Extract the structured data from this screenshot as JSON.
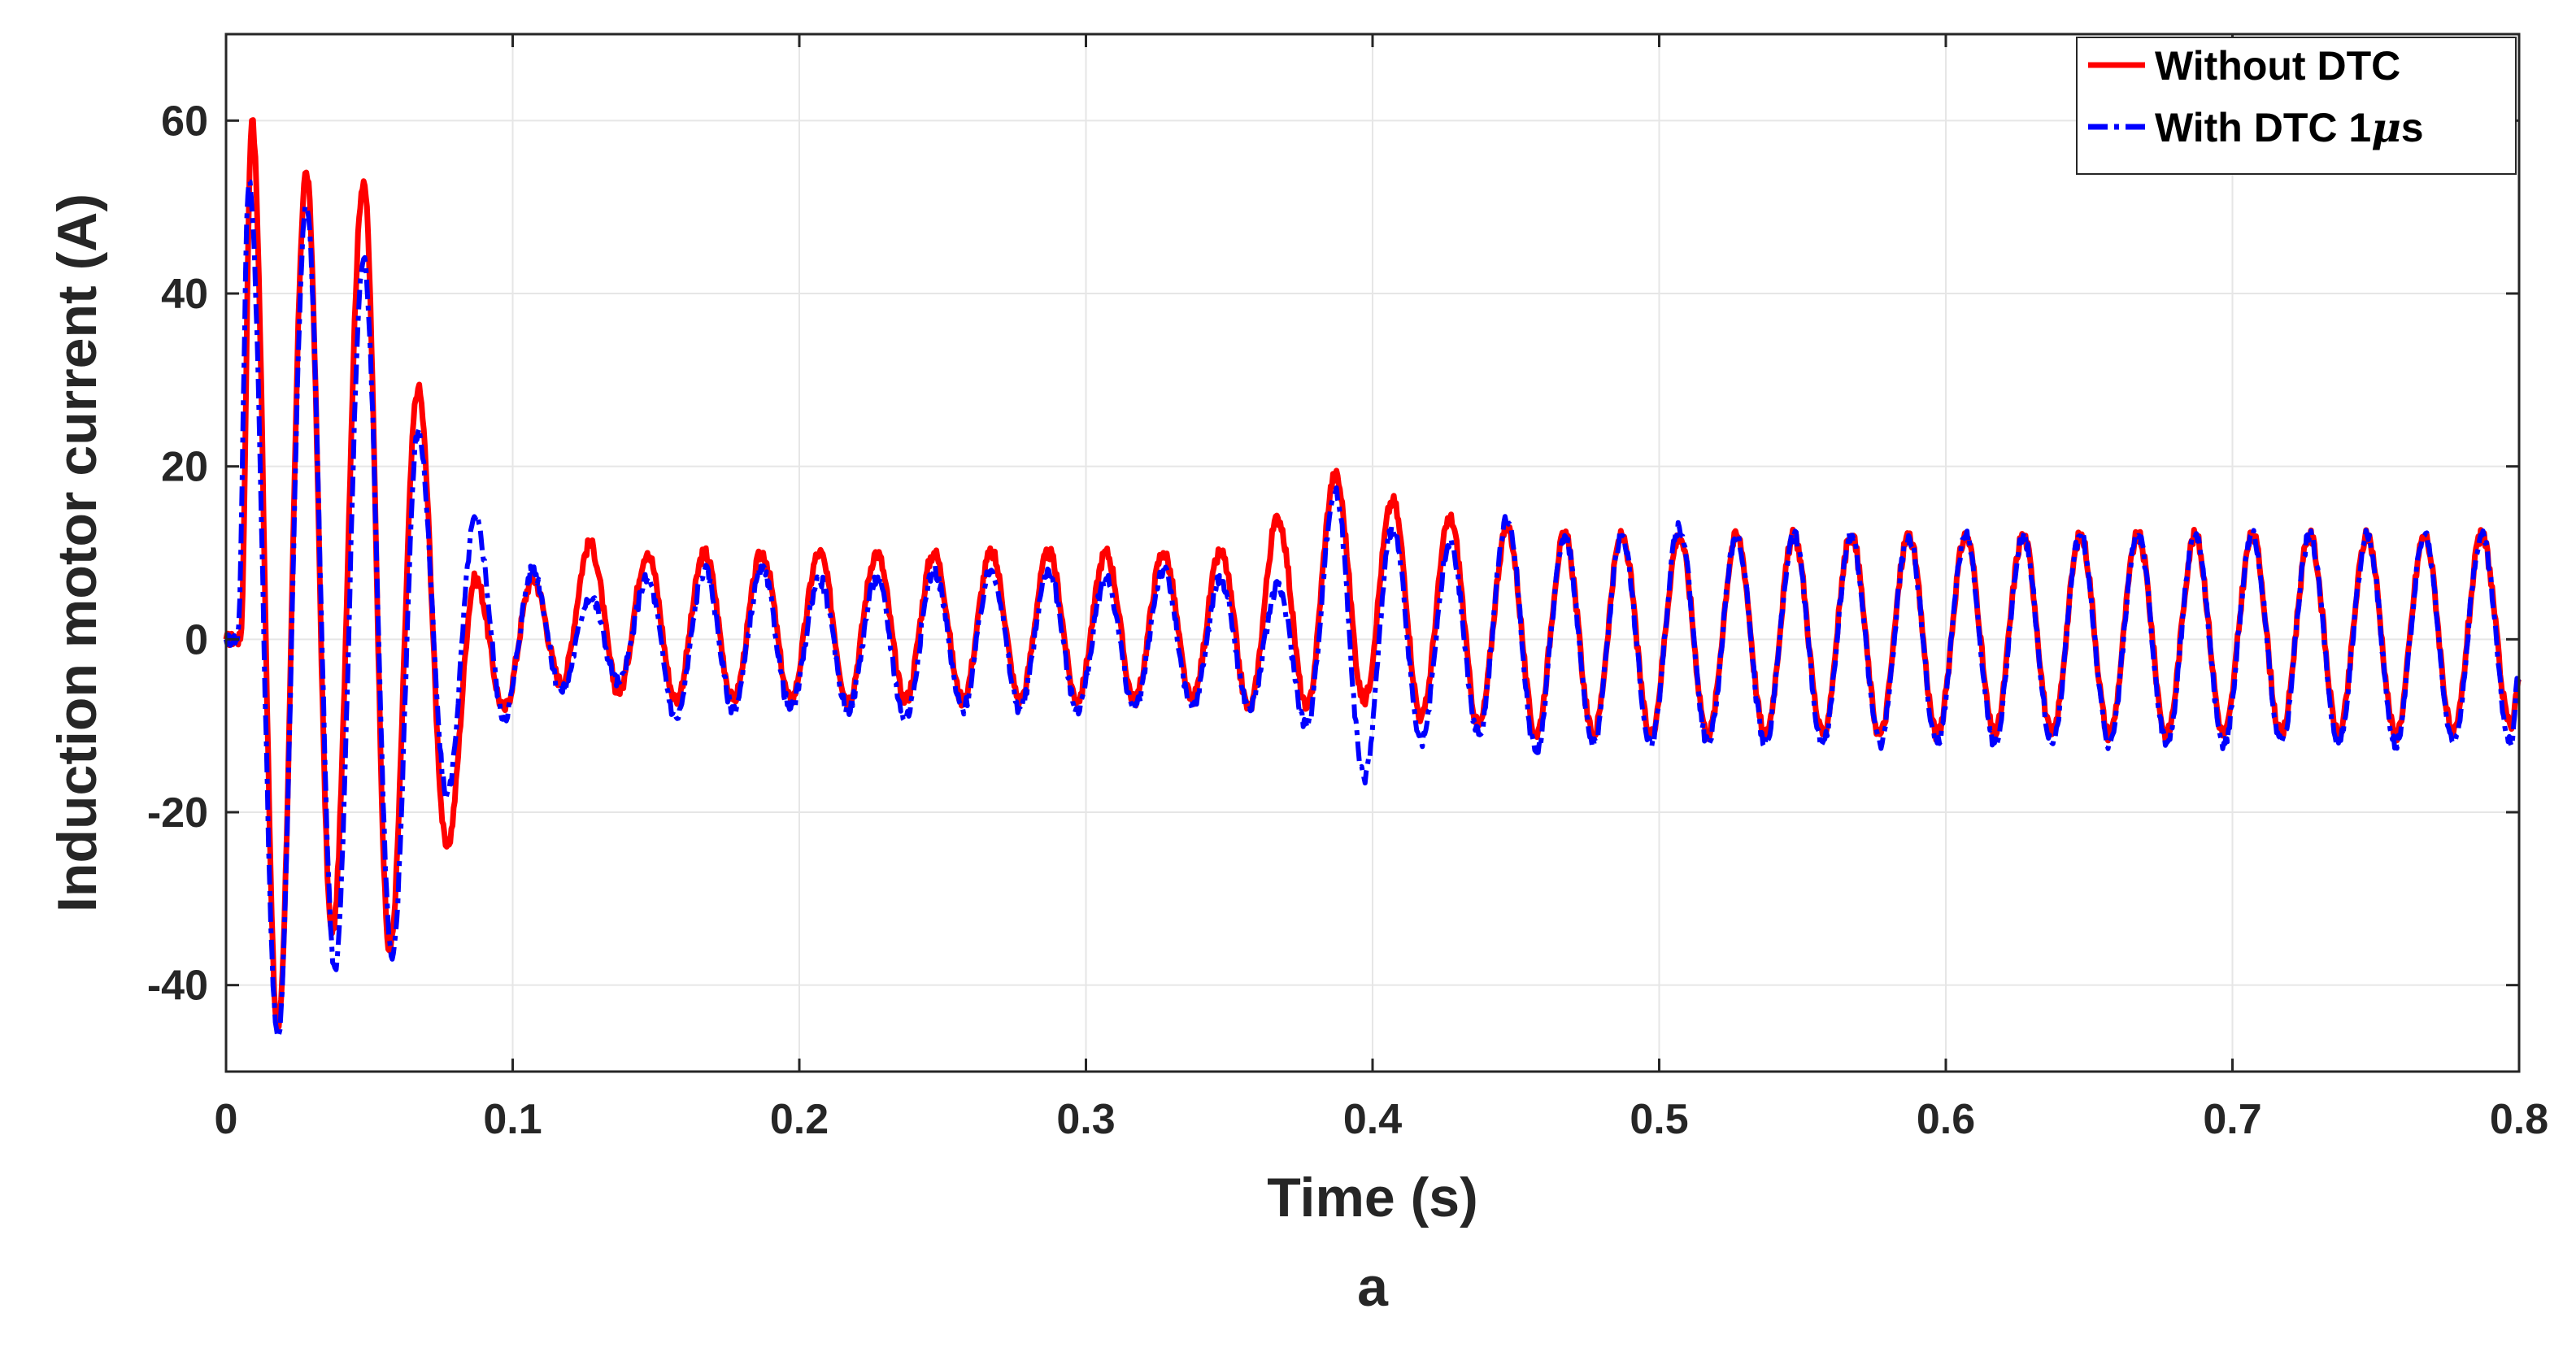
{
  "chart_data": {
    "type": "line",
    "title": "",
    "xlabel": "Time (s)",
    "ylabel": "Induction motor current (A)",
    "caption": "a",
    "xlim": [
      0,
      0.8
    ],
    "ylim": [
      -50,
      70
    ],
    "xticks": [
      0,
      0.1,
      0.2,
      0.3,
      0.4,
      0.5,
      0.6,
      0.7,
      0.8
    ],
    "xtick_labels": [
      "0",
      "0.1",
      "0.2",
      "0.3",
      "0.4",
      "0.5",
      "0.6",
      "0.7",
      "0.8"
    ],
    "yticks": [
      -40,
      -20,
      0,
      20,
      40,
      60
    ],
    "ytick_labels": [
      "-40",
      "-20",
      "0",
      "20",
      "40",
      "60"
    ],
    "grid": true,
    "legend_position": "top-right",
    "supply_frequency_hz": 50,
    "series": [
      {
        "name": "Without DTC",
        "legend_label": "Without DTC",
        "color": "#FF0000",
        "style": "solid",
        "peaks": [
          [
            0.005,
            0
          ],
          [
            0.009,
            60
          ],
          [
            0.018,
            -45
          ],
          [
            0.028,
            54
          ],
          [
            0.037,
            -34
          ],
          [
            0.048,
            53
          ],
          [
            0.057,
            -36
          ],
          [
            0.067,
            29
          ],
          [
            0.077,
            -24
          ],
          [
            0.087,
            7
          ],
          [
            0.097,
            -8
          ],
          [
            0.107,
            7
          ],
          [
            0.117,
            -5
          ],
          [
            0.127,
            11
          ],
          [
            0.137,
            -6
          ],
          [
            0.147,
            10
          ],
          [
            0.157,
            -7
          ],
          [
            0.167,
            10
          ],
          [
            0.177,
            -7
          ],
          [
            0.187,
            10
          ],
          [
            0.197,
            -7
          ],
          [
            0.207,
            10
          ],
          [
            0.217,
            -7
          ],
          [
            0.227,
            10
          ],
          [
            0.237,
            -7
          ],
          [
            0.247,
            10
          ],
          [
            0.257,
            -7
          ],
          [
            0.267,
            10
          ],
          [
            0.277,
            -7
          ],
          [
            0.287,
            10
          ],
          [
            0.297,
            -7
          ],
          [
            0.307,
            10
          ],
          [
            0.317,
            -7
          ],
          [
            0.327,
            10
          ],
          [
            0.337,
            -7
          ],
          [
            0.347,
            10
          ],
          [
            0.357,
            -8
          ],
          [
            0.367,
            14
          ],
          [
            0.377,
            -8
          ],
          [
            0.387,
            19
          ],
          [
            0.397,
            -7
          ],
          [
            0.407,
            16
          ],
          [
            0.417,
            -9
          ],
          [
            0.427,
            14
          ],
          [
            0.437,
            -10
          ],
          [
            0.447,
            13
          ],
          [
            0.457,
            -11
          ],
          [
            0.467,
            12
          ],
          [
            0.477,
            -11
          ],
          [
            0.487,
            12
          ],
          [
            0.497,
            -11
          ],
          [
            0.507,
            12
          ],
          [
            0.517,
            -11
          ],
          [
            0.527,
            12
          ],
          [
            0.537,
            -11
          ],
          [
            0.547,
            12
          ],
          [
            0.557,
            -11
          ],
          [
            0.567,
            12
          ],
          [
            0.577,
            -11
          ],
          [
            0.587,
            12
          ],
          [
            0.597,
            -11
          ],
          [
            0.607,
            12
          ],
          [
            0.617,
            -11
          ],
          [
            0.627,
            12
          ],
          [
            0.637,
            -11
          ],
          [
            0.647,
            12
          ],
          [
            0.657,
            -11
          ],
          [
            0.667,
            12
          ],
          [
            0.677,
            -11
          ],
          [
            0.687,
            12
          ],
          [
            0.697,
            -11
          ],
          [
            0.707,
            12
          ],
          [
            0.717,
            -11
          ],
          [
            0.727,
            12
          ],
          [
            0.737,
            -11
          ],
          [
            0.747,
            12
          ],
          [
            0.757,
            -11
          ],
          [
            0.767,
            12
          ],
          [
            0.777,
            -11
          ],
          [
            0.787,
            12
          ],
          [
            0.797,
            -10
          ],
          [
            0.8,
            -5
          ]
        ]
      },
      {
        "name": "With DTC 1μs",
        "legend_label_prefix": "With DTC 1",
        "legend_label_mu": "μ",
        "legend_label_suffix": "s",
        "color": "#0000FF",
        "style": "dash-dot",
        "peaks": [
          [
            0.004,
            0
          ],
          [
            0.008,
            53
          ],
          [
            0.018,
            -46
          ],
          [
            0.028,
            50
          ],
          [
            0.038,
            -38
          ],
          [
            0.048,
            44
          ],
          [
            0.058,
            -37
          ],
          [
            0.067,
            24
          ],
          [
            0.077,
            -18
          ],
          [
            0.087,
            14
          ],
          [
            0.097,
            -9
          ],
          [
            0.107,
            8
          ],
          [
            0.117,
            -6
          ],
          [
            0.127,
            5
          ],
          [
            0.137,
            -5
          ],
          [
            0.147,
            7
          ],
          [
            0.157,
            -9
          ],
          [
            0.167,
            8
          ],
          [
            0.177,
            -8
          ],
          [
            0.187,
            8
          ],
          [
            0.197,
            -8
          ],
          [
            0.207,
            7
          ],
          [
            0.217,
            -8
          ],
          [
            0.227,
            7
          ],
          [
            0.237,
            -9
          ],
          [
            0.247,
            8
          ],
          [
            0.257,
            -8
          ],
          [
            0.267,
            8
          ],
          [
            0.277,
            -8
          ],
          [
            0.287,
            8
          ],
          [
            0.297,
            -8
          ],
          [
            0.307,
            7
          ],
          [
            0.317,
            -8
          ],
          [
            0.327,
            8
          ],
          [
            0.337,
            -8
          ],
          [
            0.347,
            7
          ],
          [
            0.357,
            -8
          ],
          [
            0.367,
            6
          ],
          [
            0.377,
            -10
          ],
          [
            0.387,
            17
          ],
          [
            0.397,
            -16
          ],
          [
            0.407,
            13
          ],
          [
            0.417,
            -12
          ],
          [
            0.427,
            11
          ],
          [
            0.437,
            -11
          ],
          [
            0.447,
            14
          ],
          [
            0.457,
            -13
          ],
          [
            0.467,
            12
          ],
          [
            0.477,
            -12
          ],
          [
            0.487,
            12
          ],
          [
            0.497,
            -12
          ],
          [
            0.507,
            13
          ],
          [
            0.517,
            -12
          ],
          [
            0.527,
            12
          ],
          [
            0.537,
            -12
          ],
          [
            0.547,
            12
          ],
          [
            0.557,
            -12
          ],
          [
            0.567,
            12
          ],
          [
            0.577,
            -12
          ],
          [
            0.587,
            12
          ],
          [
            0.597,
            -12
          ],
          [
            0.607,
            12
          ],
          [
            0.617,
            -12
          ],
          [
            0.627,
            12
          ],
          [
            0.637,
            -12
          ],
          [
            0.647,
            12
          ],
          [
            0.657,
            -12
          ],
          [
            0.667,
            12
          ],
          [
            0.677,
            -12
          ],
          [
            0.687,
            12
          ],
          [
            0.697,
            -12
          ],
          [
            0.707,
            12
          ],
          [
            0.717,
            -12
          ],
          [
            0.727,
            12
          ],
          [
            0.737,
            -12
          ],
          [
            0.747,
            12
          ],
          [
            0.757,
            -12
          ],
          [
            0.767,
            12
          ],
          [
            0.777,
            -12
          ],
          [
            0.787,
            12
          ],
          [
            0.797,
            -12
          ],
          [
            0.8,
            -4
          ]
        ]
      }
    ]
  }
}
